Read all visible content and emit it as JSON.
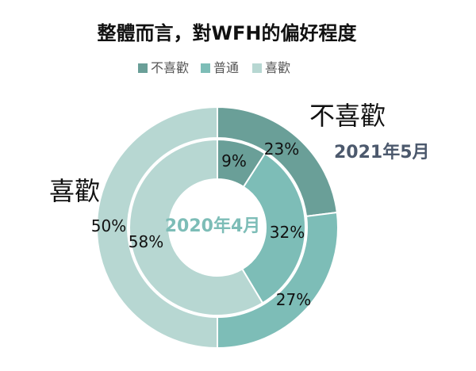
{
  "chart_data": {
    "type": "donut",
    "title": "整體而言，對WFH的偏好程度",
    "legend_position": "top",
    "categories": [
      "不喜歡",
      "普通",
      "喜歡"
    ],
    "colors": {
      "不喜歡": "#6a9f98",
      "普通": "#7dbdb7",
      "喜歡": "#b7d7d2"
    },
    "series": [
      {
        "name": "2020年4月",
        "ring": "inner",
        "values": [
          9,
          32,
          58
        ],
        "value_labels": [
          "9%",
          "32%",
          "58%"
        ]
      },
      {
        "name": "2021年5月",
        "ring": "outer",
        "values": [
          23,
          27,
          50
        ],
        "value_labels": [
          "23%",
          "27%",
          "50%"
        ]
      }
    ],
    "annotations": {
      "dislike": "不喜歡",
      "like": "喜歡"
    }
  }
}
